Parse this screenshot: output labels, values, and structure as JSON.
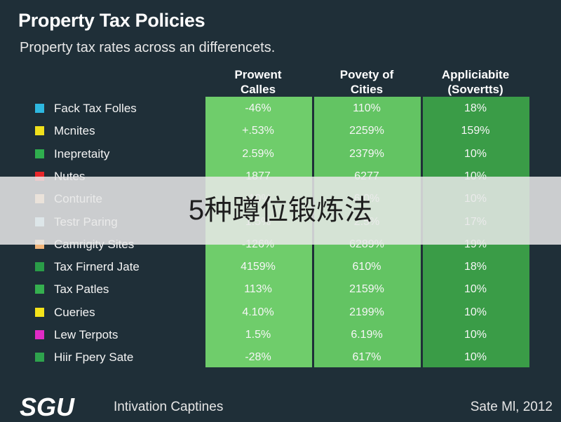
{
  "chart_data": {
    "type": "table",
    "title": "Property Tax Policies",
    "subtitle": "Property tax rates across an differencets.",
    "columns": [
      {
        "header": [
          "Prowent",
          "Calles"
        ],
        "color": "#6fcd6b"
      },
      {
        "header": [
          "Povety of",
          "Cities"
        ],
        "color": "#63c463"
      },
      {
        "header": [
          "Appliciabite",
          "(Sovertts)"
        ],
        "color": "#3a9c47"
      }
    ],
    "rows": [
      {
        "label": "Fack Tax Folles",
        "color": "#2eb8e0",
        "values": [
          "-46%",
          "110%",
          "18%"
        ]
      },
      {
        "label": "Mcnites",
        "color": "#f0e01c",
        "values": [
          "+.53%",
          "2259%",
          "159%"
        ]
      },
      {
        "label": "Inepretaity",
        "color": "#2fae4e",
        "values": [
          "2.59%",
          "2379%",
          "10%"
        ]
      },
      {
        "label": "Nutes",
        "color": "#e8262a",
        "values": [
          "1877",
          "6277",
          "10%"
        ]
      },
      {
        "label": "Conturite",
        "color": "#f5c08a",
        "values": [
          "-10%",
          "6.0%",
          "10%"
        ]
      },
      {
        "label": "Testr Paring",
        "color": "#9adcf0",
        "values": [
          "1.5%",
          "2.5%",
          "17%"
        ]
      },
      {
        "label": "Camrigity Sites",
        "color": "#f2b57a",
        "values": [
          "-126%",
          "6289%",
          "19%"
        ]
      },
      {
        "label": "Tax Firnerd Jate",
        "color": "#2a9c48",
        "values": [
          "4159%",
          "610%",
          "18%"
        ]
      },
      {
        "label": "Tax Patles",
        "color": "#35b04f",
        "values": [
          "113%",
          "2159%",
          "10%"
        ]
      },
      {
        "label": "Cueries",
        "color": "#f4e31a",
        "values": [
          "4.10%",
          "2199%",
          "10%"
        ]
      },
      {
        "label": "Lew Terpots",
        "color": "#e02bc5",
        "values": [
          "1.5%",
          "6.19%",
          "10%"
        ]
      },
      {
        "label": "Hiir Fpery Sate",
        "color": "#2ea34d",
        "values": [
          "-28%",
          "617%",
          "10%"
        ]
      }
    ]
  },
  "overlay_text": "5种蹲位锻炼法",
  "footer": {
    "logo": "SGU",
    "left": "Intivation Captines",
    "right": "Sate Ml, 2012"
  }
}
